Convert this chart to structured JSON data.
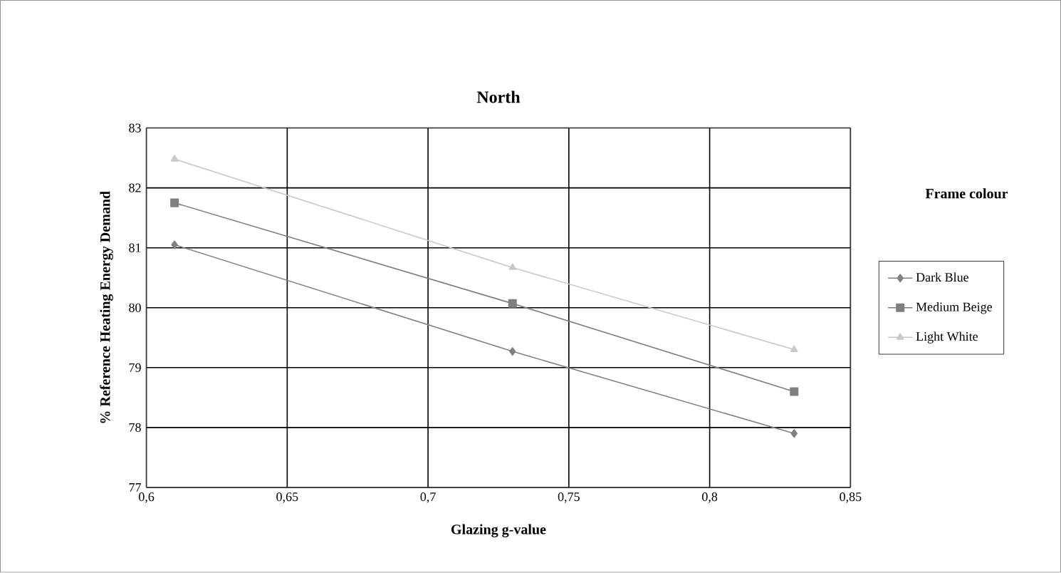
{
  "chart_data": {
    "type": "line",
    "title": "North",
    "xlabel": "Glazing g-value",
    "ylabel": "% Reference Heating Energy Demand",
    "legend_title": "Frame colour",
    "x": [
      0.61,
      0.73,
      0.83
    ],
    "series": [
      {
        "name": "Dark Blue",
        "color": "#808080",
        "marker": "diamond",
        "values": [
          81.05,
          79.27,
          77.9
        ]
      },
      {
        "name": "Medium Beige",
        "color": "#7f7f7f",
        "marker": "square",
        "values": [
          81.75,
          80.07,
          78.6
        ]
      },
      {
        "name": "Light White",
        "color": "#c8c8c8",
        "marker": "triangle",
        "values": [
          82.48,
          80.67,
          79.3
        ]
      }
    ],
    "xlim": [
      0.6,
      0.85
    ],
    "xticks": [
      {
        "value": 0.6,
        "label": "0,6"
      },
      {
        "value": 0.65,
        "label": "0,65"
      },
      {
        "value": 0.7,
        "label": "0,7"
      },
      {
        "value": 0.75,
        "label": "0,75"
      },
      {
        "value": 0.8,
        "label": "0,8"
      },
      {
        "value": 0.85,
        "label": "0,85"
      }
    ],
    "ylim": [
      77,
      83
    ],
    "yticks": [
      77,
      78,
      79,
      80,
      81,
      82,
      83
    ],
    "grid": true,
    "legend": "right"
  }
}
